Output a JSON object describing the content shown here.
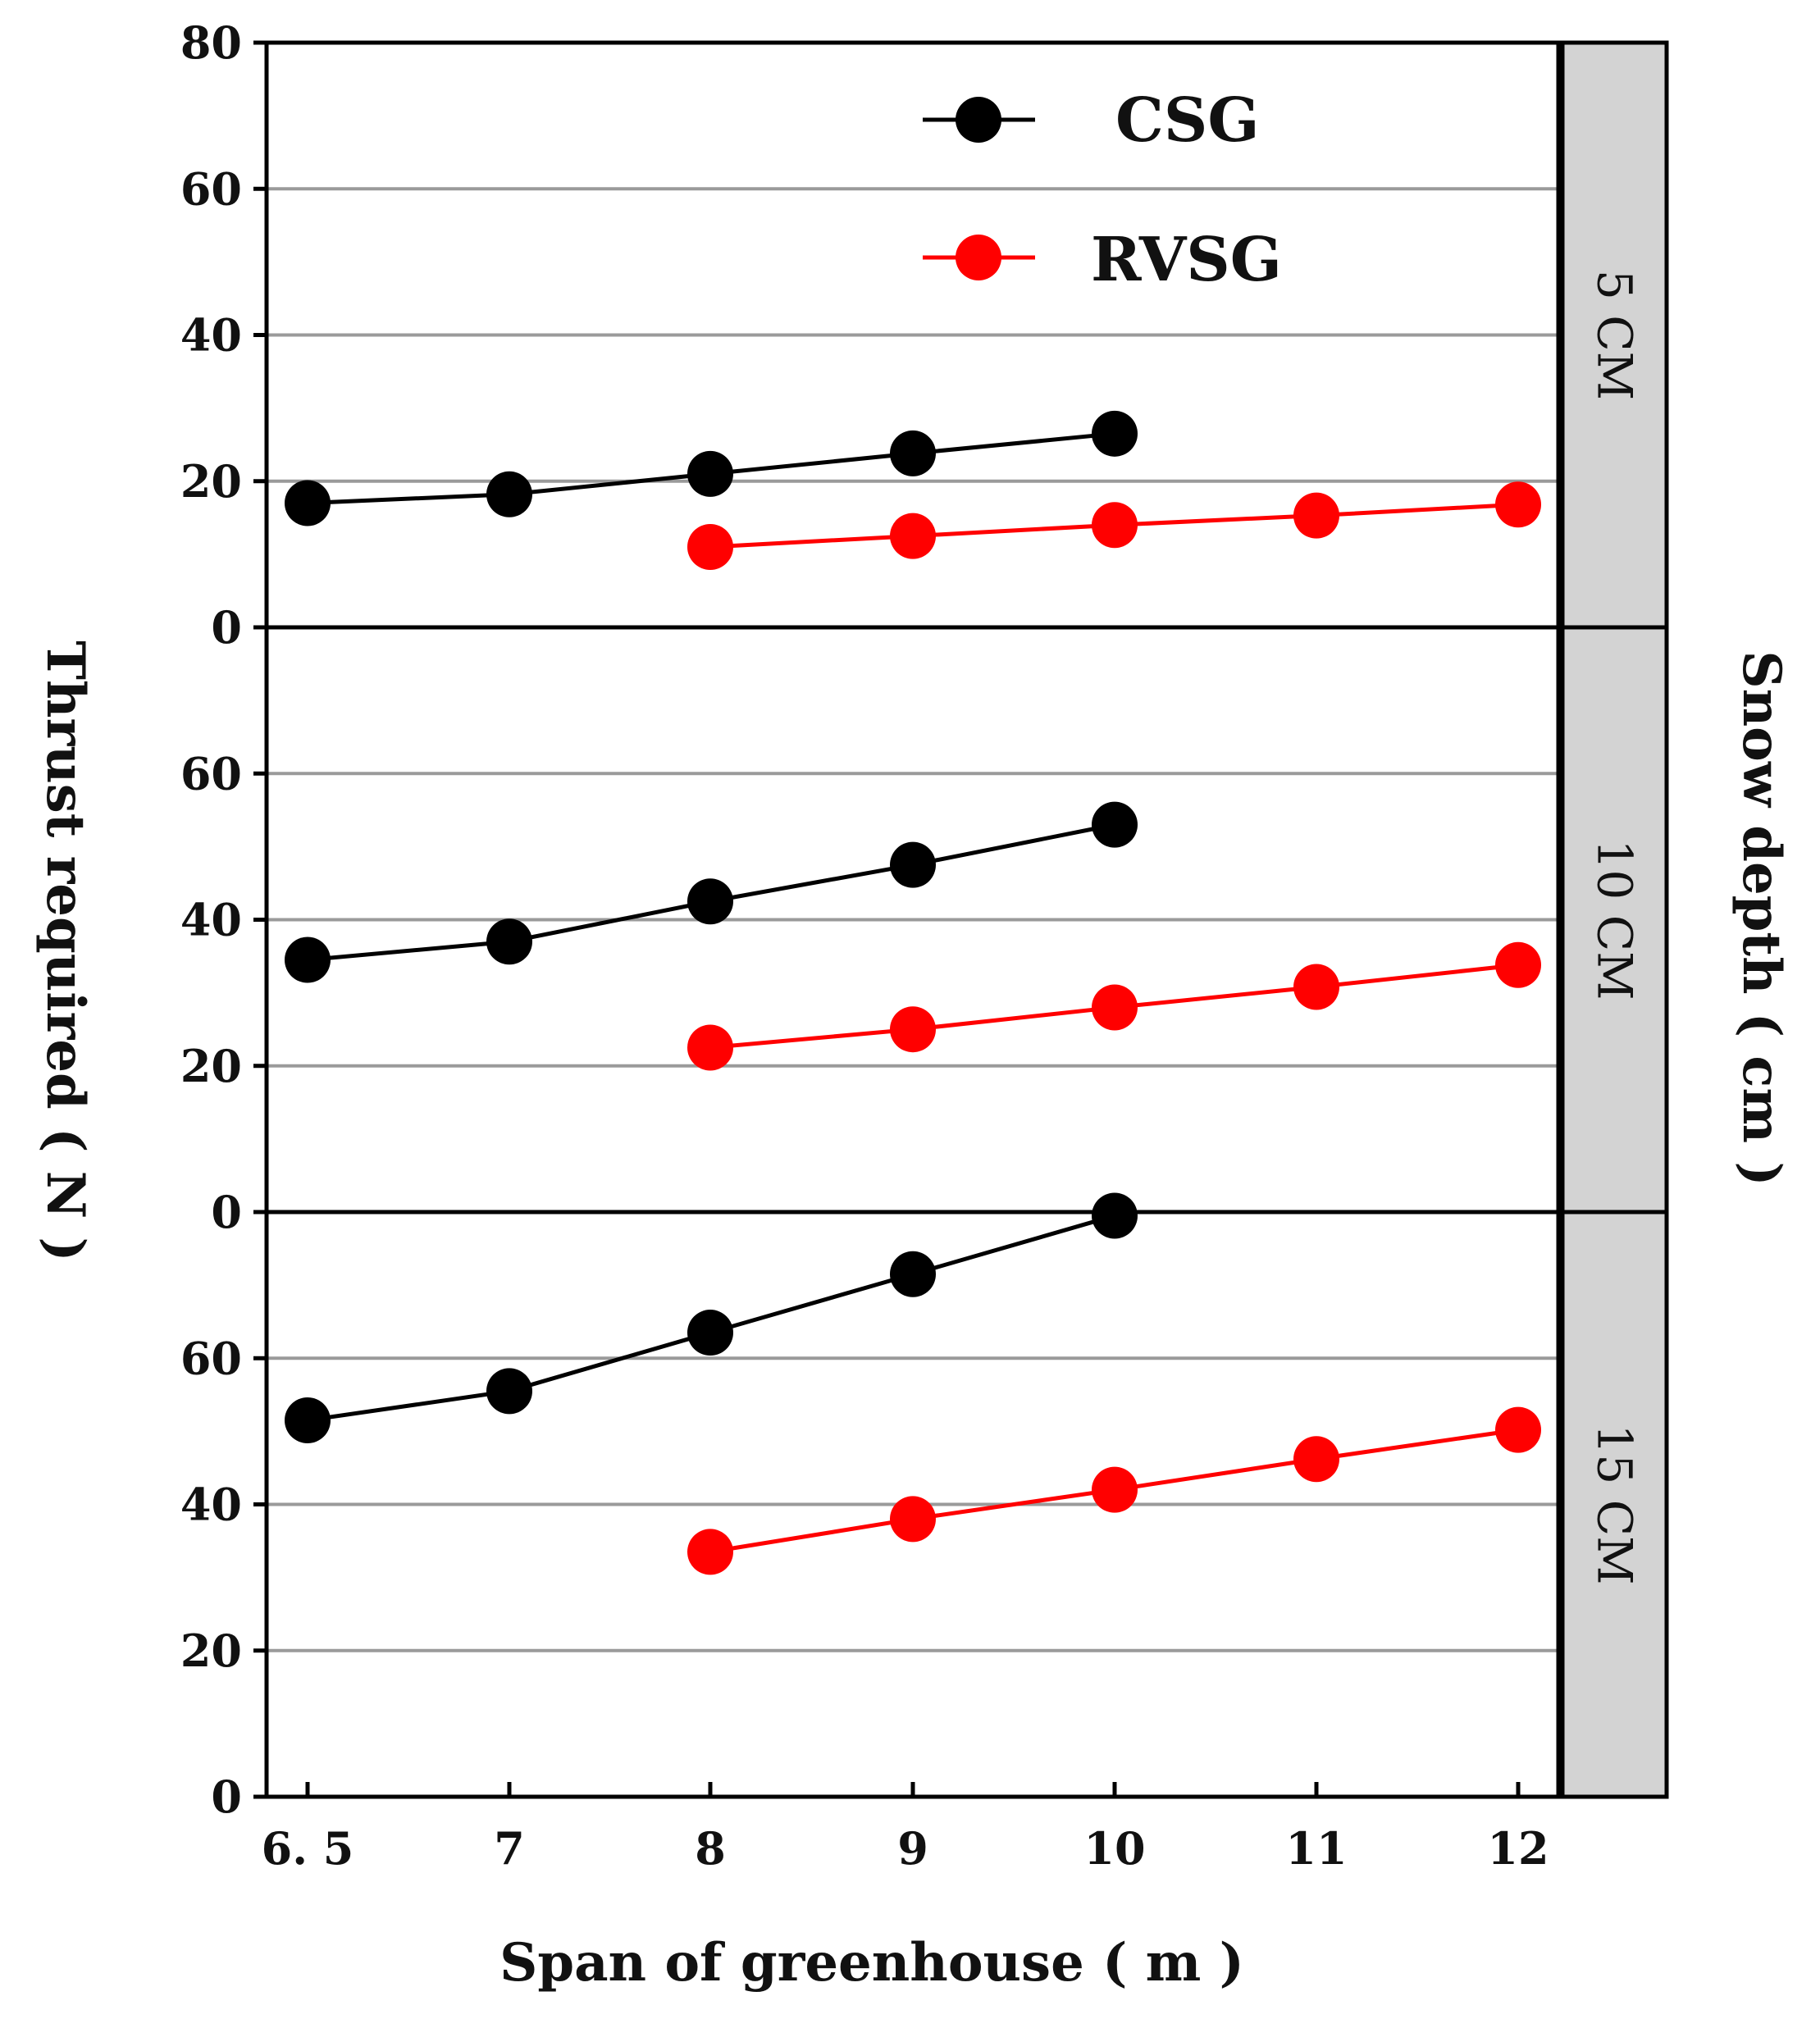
{
  "chart_data": {
    "type": "line",
    "layout": "faceted-vertical",
    "xlabel": "Span of greenhouse ( m )",
    "ylabel": "Thrust required ( N )",
    "facet_label_title": "Snow depth ( cm )",
    "x_categories": [
      6.5,
      7,
      8,
      9,
      10,
      11,
      12
    ],
    "x_tick_labels": [
      "6. 5",
      "7",
      "8",
      "9",
      "10",
      "11",
      "12"
    ],
    "ylim": [
      0,
      80
    ],
    "y_tick_values": [
      0,
      20,
      40,
      60,
      80
    ],
    "legend": [
      {
        "name": "CSG",
        "color": "#000000"
      },
      {
        "name": "RVSG",
        "color": "#ff0000"
      }
    ],
    "panels": [
      {
        "label": "5 CM",
        "y_tick_labels": [
          "80",
          "60",
          "40",
          "20",
          "0"
        ],
        "series": [
          {
            "name": "CSG",
            "color": "#000000",
            "x": [
              6.5,
              7,
              8,
              9,
              10
            ],
            "values": [
              17,
              18.2,
              21,
              23.8,
              26.5
            ]
          },
          {
            "name": "RVSG",
            "color": "#ff0000",
            "x": [
              8,
              9,
              10,
              11,
              12
            ],
            "values": [
              11,
              12.5,
              14,
              15.3,
              16.8
            ]
          }
        ]
      },
      {
        "label": "10 CM",
        "y_tick_labels": [
          "",
          "60",
          "40",
          "20",
          "0"
        ],
        "series": [
          {
            "name": "CSG",
            "color": "#000000",
            "x": [
              6.5,
              7,
              8,
              9,
              10
            ],
            "values": [
              34.5,
              37,
              42.5,
              47.5,
              53
            ]
          },
          {
            "name": "RVSG",
            "color": "#ff0000",
            "x": [
              8,
              9,
              10,
              11,
              12
            ],
            "values": [
              22.5,
              25,
              28,
              30.8,
              33.8
            ]
          }
        ]
      },
      {
        "label": "15 CM",
        "y_tick_labels": [
          "",
          "60",
          "40",
          "20",
          "0"
        ],
        "series": [
          {
            "name": "CSG",
            "color": "#000000",
            "x": [
              6.5,
              7,
              8,
              9,
              10
            ],
            "values": [
              51.5,
              55.5,
              63.5,
              71.5,
              79.5
            ]
          },
          {
            "name": "RVSG",
            "color": "#ff0000",
            "x": [
              8,
              9,
              10,
              11,
              12
            ],
            "values": [
              33.5,
              38,
              42,
              46.2,
              50.2
            ]
          }
        ]
      }
    ]
  }
}
